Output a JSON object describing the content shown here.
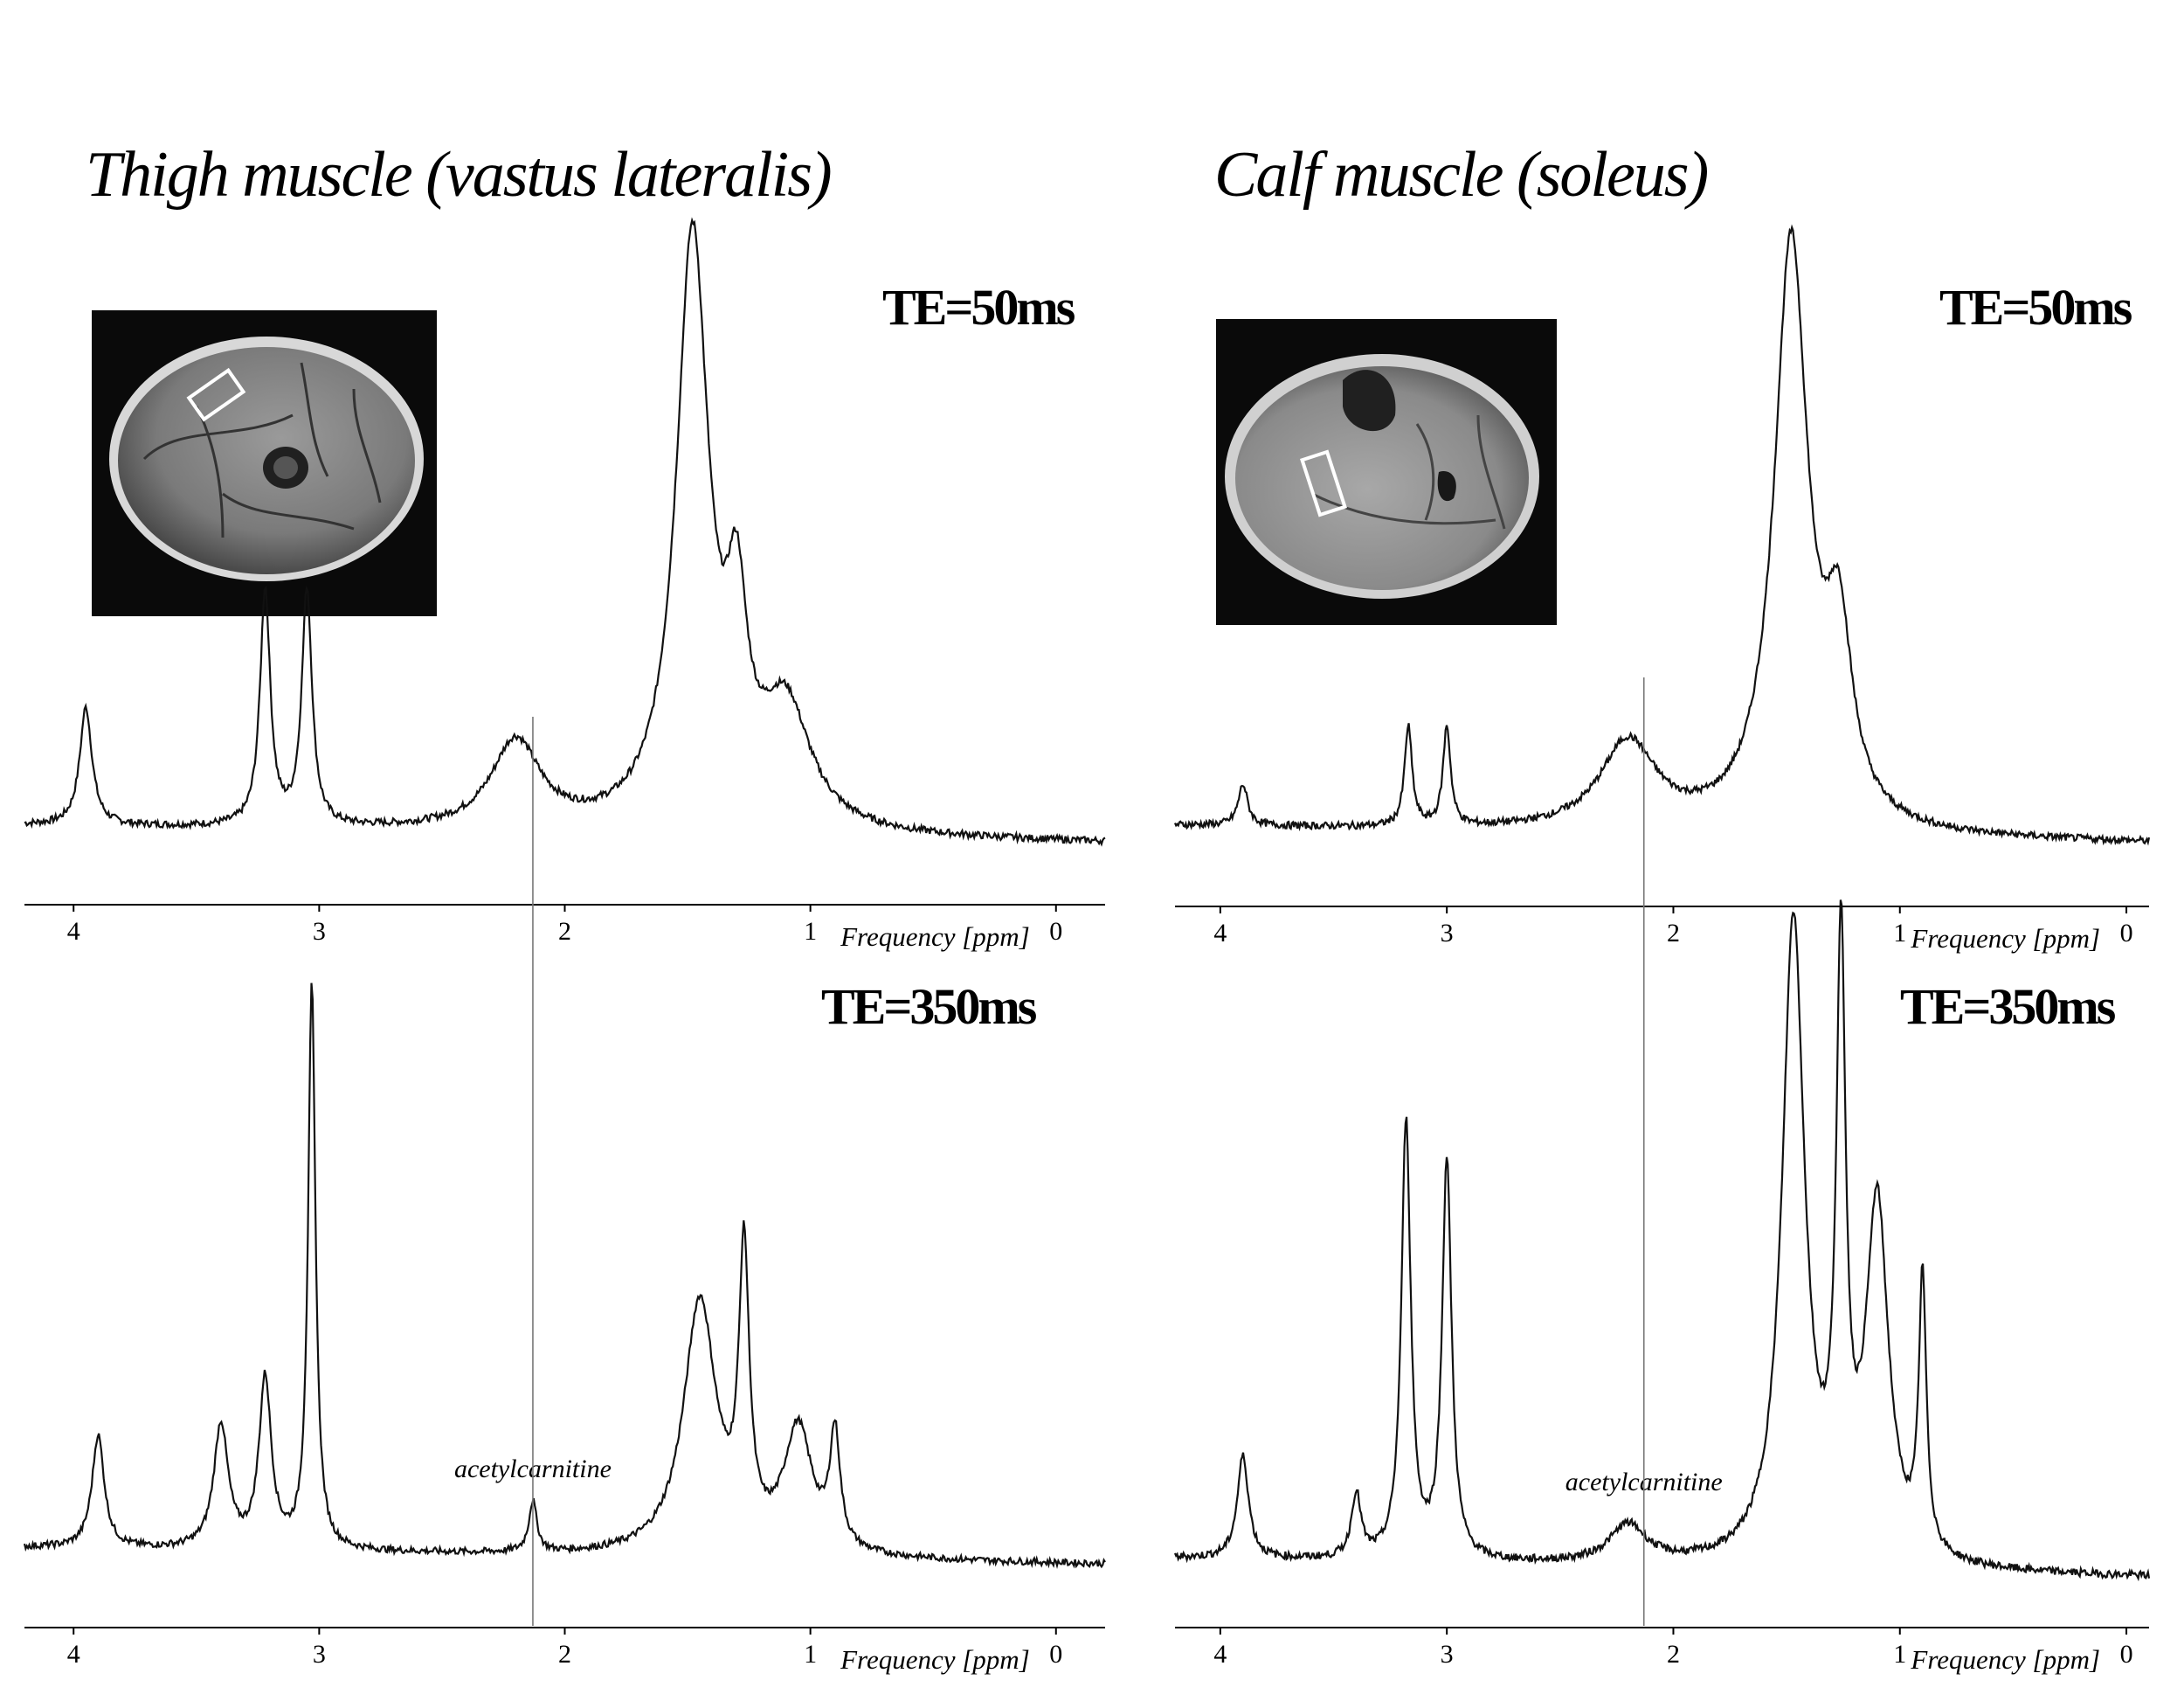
{
  "panels": [
    {
      "id": "thigh",
      "title": "Thigh muscle (vastus lateralis)",
      "mri_label": "thigh cross-section",
      "charts": [
        {
          "type": "line",
          "te_label": "TE=50ms",
          "xlabel": "Frequency [ppm]",
          "xlim": [
            4.2,
            -0.2
          ],
          "xticks": [
            4,
            3,
            2,
            1,
            0
          ],
          "marker_ppm": 2.13,
          "annotation": "",
          "peaks": [
            {
              "ppm": 3.95,
              "height": 0.2,
              "width": 0.03
            },
            {
              "ppm": 3.22,
              "height": 0.4,
              "width": 0.025
            },
            {
              "ppm": 3.05,
              "height": 0.4,
              "width": 0.025
            },
            {
              "ppm": 2.2,
              "height": 0.15,
              "width": 0.12
            },
            {
              "ppm": 1.48,
              "height": 1.0,
              "width": 0.08
            },
            {
              "ppm": 1.3,
              "height": 0.3,
              "width": 0.05
            },
            {
              "ppm": 1.1,
              "height": 0.2,
              "width": 0.12
            }
          ],
          "baseline_level": 0.05
        },
        {
          "type": "line",
          "te_label": "TE=350ms",
          "xlabel": "Frequency [ppm]",
          "xlim": [
            4.2,
            -0.2
          ],
          "xticks": [
            4,
            3,
            2,
            1,
            0
          ],
          "marker_ppm": 2.13,
          "annotation": "acetylcarnitine",
          "peaks": [
            {
              "ppm": 3.9,
              "height": 0.2,
              "width": 0.03
            },
            {
              "ppm": 3.4,
              "height": 0.22,
              "width": 0.035
            },
            {
              "ppm": 3.22,
              "height": 0.3,
              "width": 0.03
            },
            {
              "ppm": 3.03,
              "height": 1.0,
              "width": 0.018
            },
            {
              "ppm": 2.13,
              "height": 0.09,
              "width": 0.02
            },
            {
              "ppm": 1.45,
              "height": 0.45,
              "width": 0.08
            },
            {
              "ppm": 1.27,
              "height": 0.5,
              "width": 0.025
            },
            {
              "ppm": 1.05,
              "height": 0.22,
              "width": 0.07
            },
            {
              "ppm": 0.9,
              "height": 0.2,
              "width": 0.025
            }
          ],
          "baseline_level": 0.02
        }
      ]
    },
    {
      "id": "calf",
      "title": "Calf muscle (soleus)",
      "mri_label": "calf cross-section",
      "charts": [
        {
          "type": "line",
          "te_label": "TE=50ms",
          "xlabel": "Frequency [ppm]",
          "xlim": [
            4.2,
            -0.1
          ],
          "xticks": [
            4,
            3,
            2,
            1,
            0
          ],
          "marker_ppm": 2.13,
          "annotation": "",
          "peaks": [
            {
              "ppm": 3.9,
              "height": 0.07,
              "width": 0.025
            },
            {
              "ppm": 3.17,
              "height": 0.17,
              "width": 0.02
            },
            {
              "ppm": 3.0,
              "height": 0.17,
              "width": 0.02
            },
            {
              "ppm": 2.2,
              "height": 0.15,
              "width": 0.15
            },
            {
              "ppm": 1.48,
              "height": 1.0,
              "width": 0.09
            },
            {
              "ppm": 1.27,
              "height": 0.3,
              "width": 0.07
            }
          ],
          "baseline_level": 0.05
        },
        {
          "type": "line",
          "te_label": "TE=350ms",
          "xlabel": "Frequency [ppm]",
          "xlim": [
            4.2,
            -0.1
          ],
          "xticks": [
            4,
            3,
            2,
            1,
            0
          ],
          "marker_ppm": 2.13,
          "annotation": "acetylcarnitine",
          "peaks": [
            {
              "ppm": 3.9,
              "height": 0.16,
              "width": 0.03
            },
            {
              "ppm": 3.4,
              "height": 0.1,
              "width": 0.025
            },
            {
              "ppm": 3.18,
              "height": 0.68,
              "width": 0.025
            },
            {
              "ppm": 3.0,
              "height": 0.62,
              "width": 0.025
            },
            {
              "ppm": 2.2,
              "height": 0.06,
              "width": 0.1
            },
            {
              "ppm": 1.47,
              "height": 1.0,
              "width": 0.06
            },
            {
              "ppm": 1.26,
              "height": 0.9,
              "width": 0.025
            },
            {
              "ppm": 1.1,
              "height": 0.55,
              "width": 0.06
            },
            {
              "ppm": 0.9,
              "height": 0.42,
              "width": 0.02
            }
          ],
          "baseline_level": 0.03
        }
      ]
    }
  ]
}
